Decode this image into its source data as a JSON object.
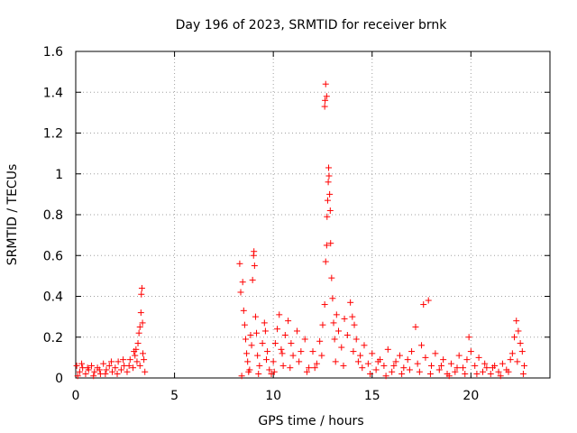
{
  "chart_data": {
    "type": "scatter",
    "title": "Day 196 of 2023, SRMTID for receiver brnk",
    "xlabel": "GPS time / hours",
    "ylabel": "SRMTID / TECUs",
    "xlim": [
      0,
      24
    ],
    "ylim": [
      0,
      1.6
    ],
    "x_ticks": [
      0,
      5,
      10,
      15,
      20
    ],
    "x_tick_labels": [
      "0",
      "5",
      "10",
      "15",
      "20"
    ],
    "y_ticks": [
      0,
      0.2,
      0.4,
      0.6,
      0.8,
      1.0,
      1.2,
      1.4,
      1.6
    ],
    "y_tick_labels": [
      "0",
      "0.2",
      "0.4",
      "0.6",
      "0.8",
      "1",
      "1.2",
      "1.4",
      "1.6"
    ],
    "grid": true,
    "marker": "+",
    "marker_color": "#ff0000",
    "series": [
      {
        "name": "SRMTID",
        "points": [
          [
            0.05,
            0.06
          ],
          [
            0.2,
            0.03
          ],
          [
            0.35,
            0.05
          ],
          [
            0.5,
            0.02
          ],
          [
            0.65,
            0.04
          ],
          [
            0.8,
            0.06
          ],
          [
            0.95,
            0.03
          ],
          [
            1.1,
            0.05
          ],
          [
            1.25,
            0.02
          ],
          [
            1.4,
            0.07
          ],
          [
            1.55,
            0.04
          ],
          [
            1.7,
            0.06
          ],
          [
            1.85,
            0.03
          ],
          [
            2.0,
            0.05
          ],
          [
            2.15,
            0.08
          ],
          [
            2.3,
            0.04
          ],
          [
            2.45,
            0.06
          ],
          [
            2.6,
            0.03
          ],
          [
            2.75,
            0.09
          ],
          [
            2.9,
            0.05
          ],
          [
            3.0,
            0.11
          ],
          [
            3.05,
            0.14
          ],
          [
            3.1,
            0.08
          ],
          [
            3.15,
            0.17
          ],
          [
            3.2,
            0.22
          ],
          [
            3.25,
            0.25
          ],
          [
            3.3,
            0.32
          ],
          [
            3.32,
            0.41
          ],
          [
            3.35,
            0.44
          ],
          [
            3.38,
            0.27
          ],
          [
            3.4,
            0.12
          ],
          [
            3.45,
            0.09
          ],
          [
            3.5,
            0.03
          ],
          [
            0.1,
            0.01
          ],
          [
            0.3,
            0.07
          ],
          [
            0.6,
            0.05
          ],
          [
            0.9,
            0.01
          ],
          [
            1.2,
            0.04
          ],
          [
            1.5,
            0.02
          ],
          [
            1.8,
            0.08
          ],
          [
            2.1,
            0.02
          ],
          [
            2.4,
            0.09
          ],
          [
            2.7,
            0.06
          ],
          [
            2.95,
            0.13
          ],
          [
            3.25,
            0.06
          ],
          [
            8.3,
            0.56
          ],
          [
            8.35,
            0.42
          ],
          [
            8.45,
            0.47
          ],
          [
            8.5,
            0.33
          ],
          [
            8.55,
            0.26
          ],
          [
            8.6,
            0.19
          ],
          [
            8.65,
            0.12
          ],
          [
            8.7,
            0.08
          ],
          [
            8.75,
            0.03
          ],
          [
            8.85,
            0.21
          ],
          [
            8.9,
            0.16
          ],
          [
            8.95,
            0.48
          ],
          [
            9.0,
            0.6
          ],
          [
            9.02,
            0.62
          ],
          [
            9.05,
            0.55
          ],
          [
            9.1,
            0.3
          ],
          [
            9.15,
            0.22
          ],
          [
            9.2,
            0.11
          ],
          [
            9.3,
            0.06
          ],
          [
            9.45,
            0.17
          ],
          [
            9.55,
            0.27
          ],
          [
            9.6,
            0.23
          ],
          [
            9.7,
            0.13
          ],
          [
            9.8,
            0.04
          ],
          [
            9.9,
            0.02
          ],
          [
            10.0,
            0.08
          ],
          [
            10.1,
            0.17
          ],
          [
            10.2,
            0.24
          ],
          [
            10.3,
            0.31
          ],
          [
            10.4,
            0.14
          ],
          [
            10.5,
            0.06
          ],
          [
            10.6,
            0.21
          ],
          [
            10.75,
            0.28
          ],
          [
            10.9,
            0.17
          ],
          [
            11.0,
            0.11
          ],
          [
            11.2,
            0.23
          ],
          [
            11.4,
            0.13
          ],
          [
            11.6,
            0.19
          ],
          [
            11.8,
            0.05
          ],
          [
            12.0,
            0.13
          ],
          [
            12.2,
            0.07
          ],
          [
            12.35,
            0.18
          ],
          [
            12.5,
            0.26
          ],
          [
            12.6,
            0.36
          ],
          [
            12.65,
            0.57
          ],
          [
            12.7,
            0.65
          ],
          [
            12.72,
            0.79
          ],
          [
            12.75,
            0.87
          ],
          [
            12.78,
            0.96
          ],
          [
            12.8,
            1.03
          ],
          [
            12.82,
            0.99
          ],
          [
            12.85,
            0.9
          ],
          [
            12.88,
            0.82
          ],
          [
            12.6,
            1.33
          ],
          [
            12.62,
            1.36
          ],
          [
            12.65,
            1.44
          ],
          [
            12.7,
            1.38
          ],
          [
            12.9,
            0.66
          ],
          [
            12.95,
            0.49
          ],
          [
            13.0,
            0.39
          ],
          [
            13.05,
            0.27
          ],
          [
            13.1,
            0.19
          ],
          [
            13.2,
            0.31
          ],
          [
            13.3,
            0.23
          ],
          [
            13.45,
            0.15
          ],
          [
            13.6,
            0.29
          ],
          [
            13.75,
            0.21
          ],
          [
            13.9,
            0.37
          ],
          [
            14.0,
            0.3
          ],
          [
            14.1,
            0.26
          ],
          [
            14.2,
            0.19
          ],
          [
            14.3,
            0.08
          ],
          [
            8.4,
            0.01
          ],
          [
            8.8,
            0.04
          ],
          [
            9.25,
            0.02
          ],
          [
            9.65,
            0.09
          ],
          [
            10.05,
            0.03
          ],
          [
            10.45,
            0.12
          ],
          [
            10.85,
            0.05
          ],
          [
            11.3,
            0.08
          ],
          [
            11.7,
            0.03
          ],
          [
            12.1,
            0.05
          ],
          [
            12.45,
            0.11
          ],
          [
            13.15,
            0.08
          ],
          [
            13.55,
            0.06
          ],
          [
            14.05,
            0.13
          ],
          [
            14.4,
            0.11
          ],
          [
            14.6,
            0.16
          ],
          [
            14.8,
            0.07
          ],
          [
            15.0,
            0.12
          ],
          [
            15.2,
            0.04
          ],
          [
            15.4,
            0.09
          ],
          [
            15.6,
            0.06
          ],
          [
            15.8,
            0.14
          ],
          [
            16.0,
            0.03
          ],
          [
            16.2,
            0.08
          ],
          [
            16.4,
            0.11
          ],
          [
            16.6,
            0.05
          ],
          [
            16.8,
            0.09
          ],
          [
            17.0,
            0.13
          ],
          [
            17.2,
            0.25
          ],
          [
            17.3,
            0.07
          ],
          [
            17.5,
            0.16
          ],
          [
            17.6,
            0.36
          ],
          [
            17.7,
            0.1
          ],
          [
            17.85,
            0.38
          ],
          [
            18.0,
            0.06
          ],
          [
            18.2,
            0.12
          ],
          [
            18.4,
            0.04
          ],
          [
            18.6,
            0.09
          ],
          [
            18.8,
            0.02
          ],
          [
            19.0,
            0.07
          ],
          [
            19.2,
            0.03
          ],
          [
            19.4,
            0.11
          ],
          [
            19.6,
            0.05
          ],
          [
            19.8,
            0.09
          ],
          [
            19.9,
            0.2
          ],
          [
            20.0,
            0.13
          ],
          [
            20.2,
            0.06
          ],
          [
            20.4,
            0.1
          ],
          [
            20.6,
            0.03
          ],
          [
            20.8,
            0.05
          ],
          [
            21.0,
            0.02
          ],
          [
            21.2,
            0.06
          ],
          [
            21.4,
            0.03
          ],
          [
            21.6,
            0.07
          ],
          [
            21.8,
            0.04
          ],
          [
            22.0,
            0.09
          ],
          [
            22.1,
            0.12
          ],
          [
            22.2,
            0.2
          ],
          [
            22.3,
            0.28
          ],
          [
            22.4,
            0.23
          ],
          [
            22.5,
            0.17
          ],
          [
            22.6,
            0.13
          ],
          [
            22.7,
            0.06
          ],
          [
            14.5,
            0.05
          ],
          [
            14.9,
            0.02
          ],
          [
            15.3,
            0.08
          ],
          [
            15.7,
            0.01
          ],
          [
            16.1,
            0.06
          ],
          [
            16.5,
            0.02
          ],
          [
            16.9,
            0.04
          ],
          [
            17.4,
            0.03
          ],
          [
            17.95,
            0.02
          ],
          [
            18.5,
            0.06
          ],
          [
            18.9,
            0.01
          ],
          [
            19.3,
            0.05
          ],
          [
            19.7,
            0.02
          ],
          [
            20.3,
            0.02
          ],
          [
            20.7,
            0.07
          ],
          [
            21.1,
            0.05
          ],
          [
            21.5,
            0.01
          ],
          [
            21.9,
            0.03
          ],
          [
            22.35,
            0.08
          ],
          [
            22.65,
            0.02
          ]
        ]
      }
    ]
  }
}
